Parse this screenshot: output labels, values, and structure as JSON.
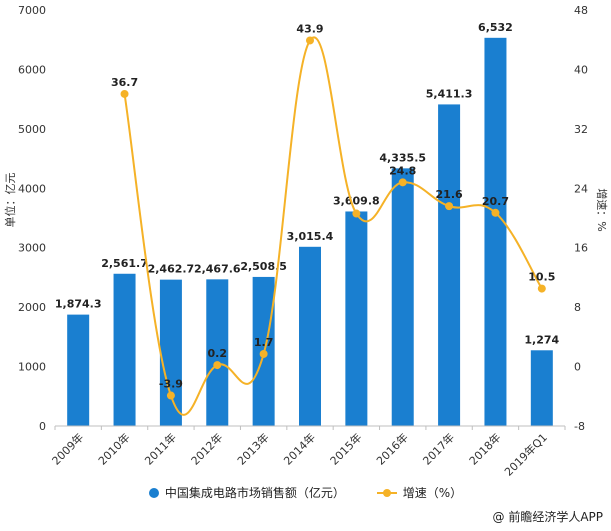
{
  "chart_data": {
    "type": "bar",
    "categories": [
      "2009年",
      "2010年",
      "2011年",
      "2012年",
      "2013年",
      "2014年",
      "2015年",
      "2016年",
      "2017年",
      "2018年",
      "2019年Q1"
    ],
    "series": [
      {
        "name": "中国集成电路市场销售额（亿元）",
        "type": "bar",
        "axis": "left",
        "values": [
          1874.3,
          2561.7,
          2462.7,
          2467.6,
          2508.5,
          3015.4,
          3609.8,
          4335.5,
          5411.3,
          6532,
          1274
        ],
        "labels": [
          "1,874.3",
          "2,561.7",
          "2,462.7",
          "2,467.6",
          "2,508.5",
          "3,015.4",
          "3,609.8",
          "4,335.5",
          "5,411.3",
          "6,532",
          "1,274"
        ],
        "color": "#1a7fd0"
      },
      {
        "name": "增速（%）",
        "type": "line",
        "axis": "right",
        "values": [
          null,
          36.7,
          -3.9,
          0.2,
          1.7,
          43.9,
          20.6,
          24.8,
          21.6,
          20.7,
          10.5
        ],
        "labels": [
          "",
          "36.7",
          "-3.9",
          "0.2",
          "1.7",
          "43.9",
          "",
          "24.8",
          "21.6",
          "20.7",
          "10.5"
        ],
        "color": "#f5b227"
      }
    ],
    "ylabel": "单位：亿元",
    "y2label": "增速：%",
    "ylim": [
      0,
      7000
    ],
    "y2lim": [
      -8,
      48
    ],
    "yticks": [
      "0",
      "1000",
      "2000",
      "3000",
      "4000",
      "5000",
      "6000",
      "7000"
    ],
    "y2ticks": [
      "-8",
      "0",
      "8",
      "16",
      "24",
      "32",
      "40",
      "48"
    ],
    "grid": false,
    "legend_position": "bottom"
  },
  "footer": {
    "source": "@ 前瞻经济学人APP"
  }
}
